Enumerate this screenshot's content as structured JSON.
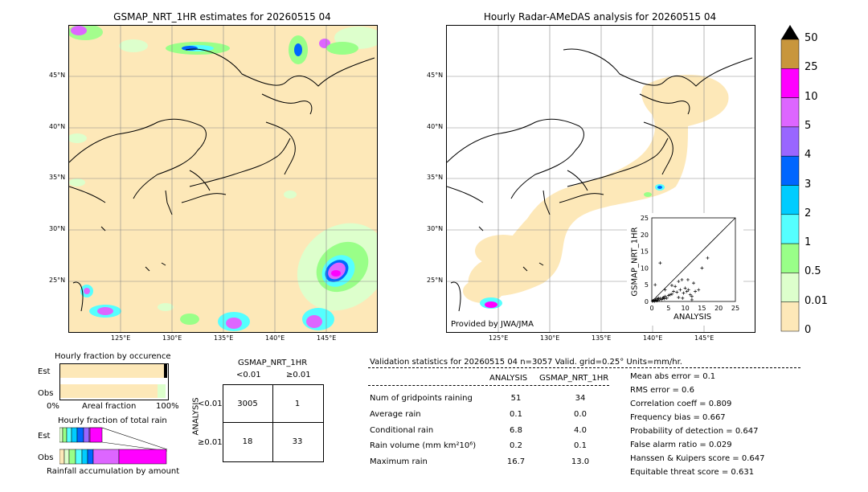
{
  "left_map": {
    "title": "GSMAP_NRT_1HR estimates for 20260515 04",
    "lat_labels": [
      "45°N",
      "40°N",
      "35°N",
      "30°N",
      "25°N"
    ],
    "lon_labels": [
      "125°E",
      "130°E",
      "135°E",
      "140°E",
      "145°E"
    ]
  },
  "right_map": {
    "title": "Hourly Radar-AMeDAS analysis for 20260515 04",
    "lat_labels": [
      "45°N",
      "40°N",
      "35°N",
      "30°N",
      "25°N"
    ],
    "lon_labels": [
      "125°E",
      "130°E",
      "135°E",
      "140°E",
      "145°E"
    ],
    "credit": "Provided by JWA/JMA"
  },
  "colorbar": {
    "labels": [
      "50",
      "25",
      "10",
      "5",
      "4",
      "3",
      "2",
      "1",
      "0.5",
      "0.01",
      "0"
    ],
    "colors": [
      "#c8963c",
      "#ff00ff",
      "#dd66ff",
      "#9966ff",
      "#0066ff",
      "#00ccff",
      "#55ffff",
      "#99ff88",
      "#ddffcc",
      "#fde8b8"
    ]
  },
  "chart_data": [
    {
      "type": "scatter",
      "xlabel": "ANALYSIS",
      "ylabel": "GSMAP_NRT_1HR",
      "xlim": [
        0,
        25
      ],
      "ylim": [
        0,
        25
      ],
      "xticks": [
        "0",
        "5",
        "10",
        "15",
        "20",
        "25"
      ],
      "yticks": [
        "0",
        "5",
        "10",
        "15",
        "20",
        "25"
      ],
      "points": [
        [
          0.2,
          0.1
        ],
        [
          0.4,
          0.2
        ],
        [
          0.6,
          0.3
        ],
        [
          0.8,
          0.1
        ],
        [
          1.0,
          0.5
        ],
        [
          1.2,
          0.3
        ],
        [
          1.5,
          0.8
        ],
        [
          1.8,
          0.5
        ],
        [
          2.0,
          1.0
        ],
        [
          2.5,
          0.9
        ],
        [
          3.0,
          0.6
        ],
        [
          3.2,
          1.0
        ],
        [
          3.5,
          1.2
        ],
        [
          4.0,
          1.5
        ],
        [
          4.5,
          1.0
        ],
        [
          5.0,
          1.8
        ],
        [
          5.5,
          2.0
        ],
        [
          6.0,
          2.2
        ],
        [
          6.5,
          3.0
        ],
        [
          7.0,
          4.5
        ],
        [
          7.5,
          2.8
        ],
        [
          8.0,
          1.2
        ],
        [
          8.5,
          3.5
        ],
        [
          9.0,
          6.5
        ],
        [
          9.5,
          2.5
        ],
        [
          10.0,
          4.0
        ],
        [
          10.5,
          3.0
        ],
        [
          11.0,
          3.5
        ],
        [
          11.5,
          2.0
        ],
        [
          12.0,
          1.5
        ],
        [
          12.5,
          5.5
        ],
        [
          13.0,
          3.0
        ],
        [
          14.0,
          3.5
        ],
        [
          1.0,
          5.0
        ],
        [
          2.5,
          11.5
        ],
        [
          4.0,
          3.5
        ],
        [
          6.0,
          4.8
        ],
        [
          8.0,
          6.0
        ],
        [
          15.0,
          10.0
        ],
        [
          16.7,
          13.0
        ],
        [
          1.5,
          0.2
        ],
        [
          2.2,
          0.4
        ],
        [
          3.8,
          0.8
        ],
        [
          12.0,
          0.5
        ],
        [
          9.2,
          1.0
        ],
        [
          10.8,
          6.5
        ]
      ]
    },
    {
      "type": "bar",
      "title": "Hourly fraction by occurence",
      "categories": [
        "Est",
        "Obs"
      ],
      "xlabel": "Areal fraction",
      "xtick_labels": [
        "0%",
        "100%"
      ]
    },
    {
      "type": "bar",
      "title": "Hourly fraction of total rain",
      "categories": [
        "Est",
        "Obs"
      ],
      "xlabel": "Rainfall accumulation by amount"
    }
  ],
  "contingency": {
    "header": "GSMAP_NRT_1HR",
    "col_labels": [
      "<0.01",
      "≥0.01"
    ],
    "row_axis": "ANALYSIS",
    "row_labels": [
      "<0.01",
      "≥0.01"
    ],
    "cells": [
      "3005",
      "1",
      "18",
      "33"
    ]
  },
  "validation": {
    "header": "Validation statistics for 20260515 04  n=3057 Valid. grid=0.25° Units=mm/hr.",
    "col_analysis": "ANALYSIS",
    "col_gsmap": "GSMAP_NRT_1HR",
    "rows": [
      {
        "label": "Num of gridpoints raining",
        "a": "51",
        "g": "34"
      },
      {
        "label": "Average rain",
        "a": "0.1",
        "g": "0.0"
      },
      {
        "label": "Conditional rain",
        "a": "6.8",
        "g": "4.0"
      },
      {
        "label": "Rain volume (mm km²10⁶)",
        "a": "0.2",
        "g": "0.1"
      },
      {
        "label": "Maximum rain",
        "a": "16.7",
        "g": "13.0"
      }
    ],
    "scores": [
      "Mean abs error =    0.1",
      "RMS error =    0.6",
      "Correlation coeff = 0.809",
      "Frequency bias =  0.667",
      "Probability of detection =  0.647",
      "False alarm ratio =  0.029",
      "Hanssen & Kuipers score =  0.647",
      "Equitable threat score =  0.631"
    ]
  }
}
